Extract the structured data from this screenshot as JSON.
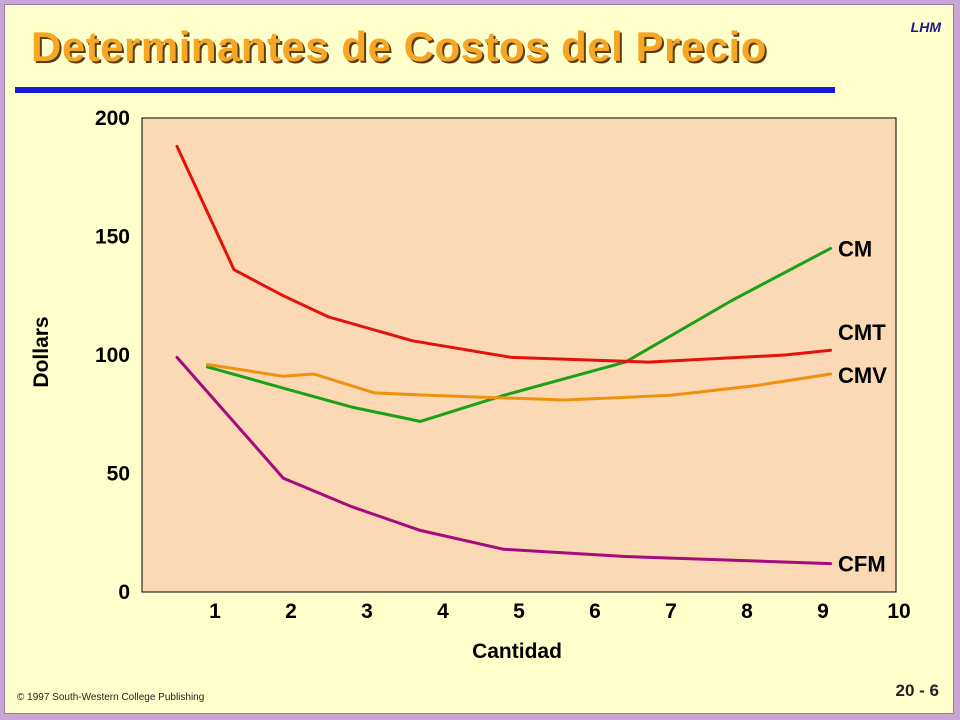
{
  "slide": {
    "title": "Determinantes de Costos del Precio",
    "corner_tag": "LHM",
    "copyright": "©  1997 South-Western College Publishing",
    "page_number": "20 - 6"
  },
  "colors": {
    "background": "#c9a6d6",
    "slide": "#ffffcc",
    "plot_area": "#fad9b4",
    "title": "#f5a623",
    "rule": "#1a1ad6"
  },
  "chart_data": {
    "type": "line",
    "xlabel": "Cantidad",
    "ylabel": "Dollars",
    "xlim": [
      0,
      10
    ],
    "ylim": [
      0,
      200
    ],
    "x_ticks": [
      1,
      2,
      3,
      4,
      5,
      6,
      7,
      8,
      9,
      10
    ],
    "y_ticks": [
      0,
      50,
      100,
      150,
      200
    ],
    "grid": false,
    "series": [
      {
        "name": "CM",
        "color": "#1aa01a",
        "points": [
          [
            0.9,
            95
          ],
          [
            1.9,
            86
          ],
          [
            2.8,
            78
          ],
          [
            3.7,
            72
          ],
          [
            4.8,
            83
          ],
          [
            6.4,
            97
          ],
          [
            7.8,
            123
          ],
          [
            9.1,
            145
          ]
        ]
      },
      {
        "name": "CMT",
        "color": "#e3120b",
        "points": [
          [
            0.5,
            188
          ],
          [
            1.25,
            136
          ],
          [
            1.9,
            125
          ],
          [
            2.5,
            116
          ],
          [
            3.6,
            106
          ],
          [
            4.9,
            99
          ],
          [
            6.7,
            97
          ],
          [
            8.5,
            100
          ],
          [
            9.1,
            102
          ]
        ]
      },
      {
        "name": "CMV",
        "color": "#f0900f",
        "points": [
          [
            0.9,
            96
          ],
          [
            1.9,
            91
          ],
          [
            2.3,
            92
          ],
          [
            3.1,
            84
          ],
          [
            3.8,
            83
          ],
          [
            5.6,
            81
          ],
          [
            7.0,
            83
          ],
          [
            8.1,
            87
          ],
          [
            9.1,
            92
          ]
        ]
      },
      {
        "name": "CFM",
        "color": "#a50b7d",
        "points": [
          [
            0.5,
            99
          ],
          [
            1.9,
            48
          ],
          [
            2.8,
            36
          ],
          [
            3.7,
            26
          ],
          [
            4.8,
            18
          ],
          [
            6.4,
            15
          ],
          [
            9.1,
            12
          ]
        ]
      }
    ]
  }
}
